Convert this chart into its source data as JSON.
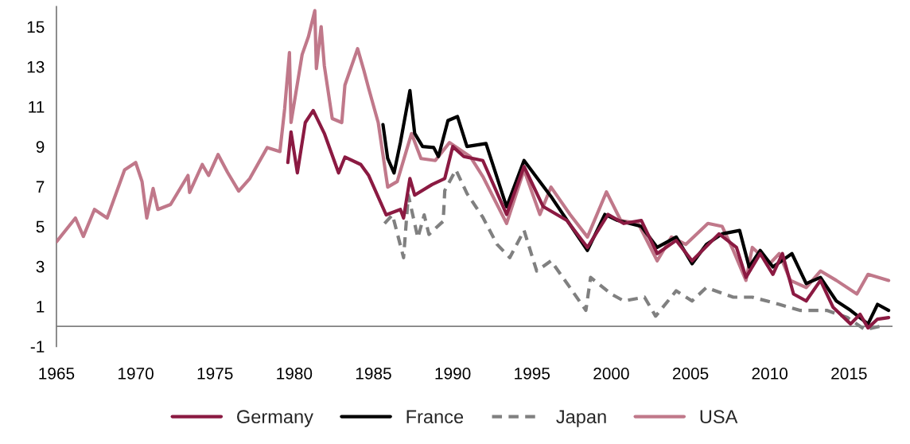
{
  "chart_data": {
    "type": "line",
    "xlim": [
      1965,
      2017.7
    ],
    "ylim": [
      -1,
      16
    ],
    "xticks": [
      1965,
      1970,
      1975,
      1980,
      1985,
      1990,
      1995,
      2000,
      2005,
      2010,
      2015
    ],
    "yticks": [
      -1,
      1,
      3,
      5,
      7,
      9,
      11,
      13,
      15
    ],
    "grid": false,
    "legend": "bottom",
    "marker": "none",
    "series": [
      {
        "name": "Germany",
        "color": "#8b1a42",
        "line_style": "solid",
        "x": [
          1979.6,
          1979.8,
          1980.2,
          1980.7,
          1981.2,
          1981.9,
          1982.8,
          1983.2,
          1984.2,
          1984.7,
          1985.8,
          1986.7,
          1986.9,
          1987.3,
          1987.6,
          1988.7,
          1989.5,
          1990.0,
          1990.7,
          1991.9,
          1993.4,
          1994.5,
          1995.7,
          1997.2,
          1998.5,
          1999.8,
          2000.8,
          2001.9,
          2002.9,
          2004.1,
          2005.1,
          2006.8,
          2007.9,
          2008.5,
          2009.4,
          2010.2,
          2010.8,
          2011.5,
          2012.3,
          2013.2,
          2014.0,
          2015.1,
          2015.7,
          2016.2,
          2016.8,
          2017.5
        ],
        "values": [
          8.2,
          9.73,
          7.68,
          10.2,
          10.8,
          9.66,
          7.68,
          8.47,
          8.1,
          7.55,
          5.58,
          5.85,
          5.42,
          7.4,
          6.57,
          7.1,
          7.4,
          9.0,
          8.5,
          8.3,
          5.6,
          8.0,
          6.0,
          5.3,
          3.95,
          5.6,
          5.15,
          5.3,
          3.64,
          4.3,
          3.28,
          4.63,
          3.95,
          2.45,
          3.64,
          2.6,
          3.64,
          1.62,
          1.27,
          2.3,
          0.95,
          0.12,
          0.6,
          -0.08,
          0.36,
          0.44
        ]
      },
      {
        "name": "France",
        "color": "#000000",
        "line_style": "solid",
        "x": [
          1985.6,
          1985.9,
          1986.3,
          1986.7,
          1987.3,
          1987.6,
          1988.1,
          1988.8,
          1989.1,
          1989.7,
          1990.3,
          1990.9,
          1992.1,
          1993.4,
          1994.5,
          1996.2,
          1998.5,
          1999.6,
          2000.4,
          2001.9,
          2002.9,
          2004.1,
          2005.1,
          2006.0,
          2007.0,
          2008.1,
          2008.7,
          2009.4,
          2010.2,
          2011.4,
          2012.3,
          2013.2,
          2014.2,
          2015.1,
          2016.2,
          2016.8,
          2017.5
        ],
        "values": [
          10.1,
          8.4,
          7.68,
          9.2,
          11.8,
          9.66,
          9.0,
          8.95,
          8.5,
          10.3,
          10.5,
          9.0,
          9.15,
          5.98,
          8.3,
          6.5,
          3.8,
          5.6,
          5.3,
          5.0,
          3.95,
          4.47,
          3.13,
          4.1,
          4.63,
          4.8,
          2.97,
          3.8,
          2.97,
          3.64,
          2.14,
          2.45,
          1.27,
          0.8,
          0.12,
          1.1,
          0.8
        ]
      },
      {
        "name": "Japan",
        "color": "#808080",
        "line_style": "dashed",
        "x": [
          1985.7,
          1986.2,
          1986.9,
          1987.2,
          1987.8,
          1988.2,
          1988.5,
          1989.4,
          1989.5,
          1990.2,
          1990.9,
          1991.9,
          1992.8,
          1993.6,
          1994.5,
          1995.3,
          1996.2,
          1997.4,
          1998.4,
          1998.7,
          2000.0,
          2000.8,
          2002.1,
          2002.8,
          2004.1,
          2005.1,
          2006.0,
          2007.7,
          2008.9,
          2010.6,
          2011.9,
          2013.6,
          2014.9,
          2016.0,
          2017.2
        ],
        "values": [
          5.15,
          5.58,
          3.44,
          6.57,
          4.43,
          5.58,
          4.6,
          5.26,
          6.8,
          7.83,
          6.65,
          5.46,
          4.1,
          3.44,
          4.8,
          2.77,
          3.28,
          1.94,
          0.8,
          2.45,
          1.62,
          1.27,
          1.46,
          0.51,
          1.78,
          1.27,
          1.94,
          1.46,
          1.46,
          1.1,
          0.8,
          0.8,
          0.44,
          -0.16,
          0.04
        ]
      },
      {
        "name": "USA",
        "color": "#c0788a",
        "line_style": "solid",
        "x": [
          1965.0,
          1966.2,
          1966.7,
          1967.4,
          1968.2,
          1969.3,
          1970.0,
          1970.4,
          1970.7,
          1971.1,
          1971.4,
          1972.2,
          1973.3,
          1973.4,
          1974.2,
          1974.6,
          1975.2,
          1975.8,
          1976.5,
          1977.2,
          1978.3,
          1979.1,
          1979.4,
          1979.7,
          1979.8,
          1980.5,
          1980.9,
          1981.3,
          1981.4,
          1981.7,
          1981.9,
          1982.4,
          1983.0,
          1983.2,
          1984.0,
          1984.4,
          1984.7,
          1985.3,
          1985.9,
          1986.5,
          1987.4,
          1988.0,
          1988.9,
          1989.8,
          1991.1,
          1991.9,
          1993.4,
          1994.5,
          1995.5,
          1996.2,
          1997.4,
          1998.5,
          1999.7,
          2000.6,
          2001.7,
          2002.9,
          2003.8,
          2004.7,
          2006.1,
          2007.0,
          2007.7,
          2008.5,
          2008.9,
          2010.0,
          2010.6,
          2011.3,
          2012.3,
          2013.2,
          2014.2,
          2015.5,
          2016.2,
          2017.5
        ],
        "values": [
          4.23,
          5.42,
          4.5,
          5.85,
          5.42,
          7.83,
          8.2,
          7.25,
          5.42,
          6.9,
          5.85,
          6.1,
          7.55,
          6.7,
          8.1,
          7.55,
          8.6,
          7.7,
          6.77,
          7.4,
          8.95,
          8.75,
          10.9,
          13.7,
          10.2,
          13.6,
          14.5,
          15.8,
          12.9,
          15.0,
          13.05,
          10.4,
          10.2,
          12.07,
          13.9,
          12.8,
          11.9,
          10.2,
          6.97,
          7.25,
          9.65,
          8.4,
          8.3,
          9.2,
          8.5,
          7.5,
          5.15,
          7.83,
          5.6,
          6.97,
          5.6,
          4.47,
          6.73,
          5.3,
          5.15,
          3.28,
          4.47,
          4.1,
          5.15,
          5.0,
          3.8,
          2.3,
          3.95,
          3.13,
          3.64,
          2.3,
          1.94,
          2.77,
          2.3,
          1.62,
          2.6,
          2.3
        ]
      }
    ]
  }
}
